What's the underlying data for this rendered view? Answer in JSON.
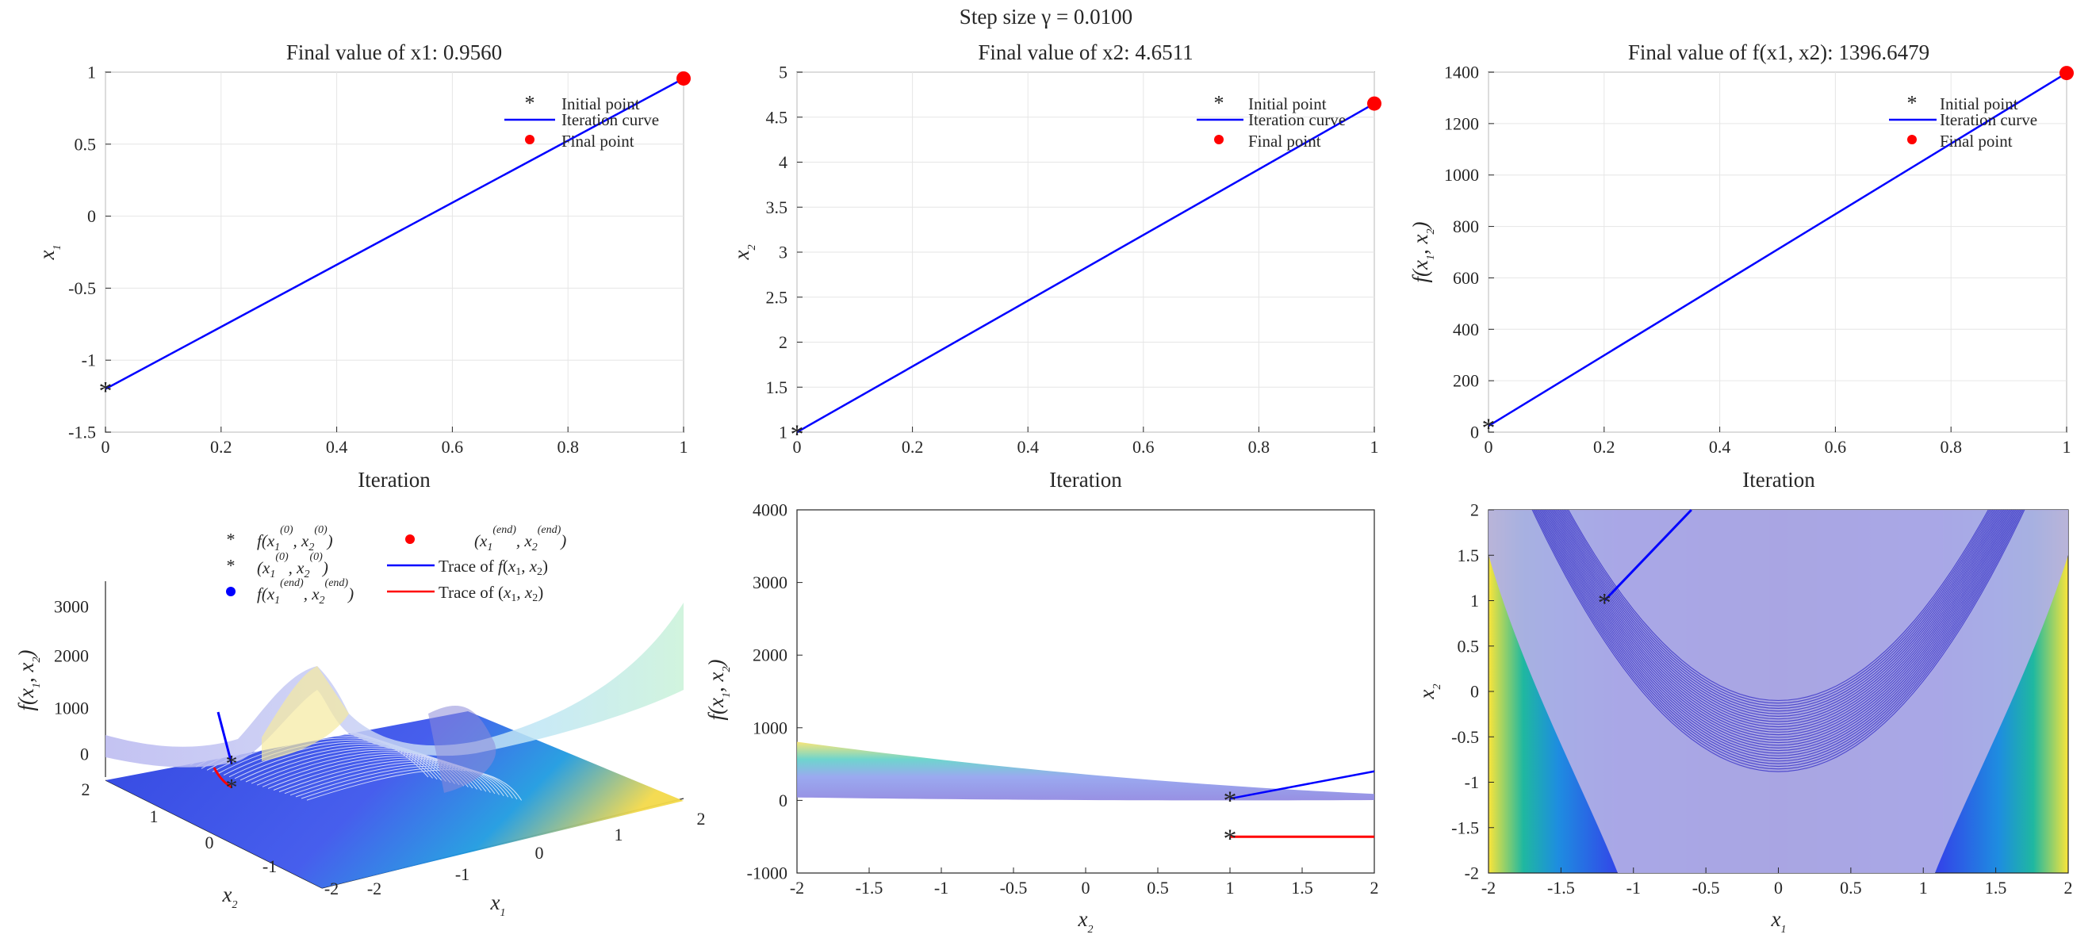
{
  "suptitle": "Step size γ = 0.0100",
  "colors": {
    "blue": "#0000ff",
    "red": "#ff0000",
    "grid": "#e6e6e6",
    "axis": "#262626",
    "surface_tint": "#a6a6e8"
  },
  "legend_top": {
    "initial": "Initial point",
    "curve": "Iteration curve",
    "final": "Final point"
  },
  "legend_3d": {
    "f_initial": "f(x1(0), x2(0))",
    "x_initial": "(x1(0), x2(0))",
    "f_final": "f(x1(end), x2(end))",
    "x_final": "(x1(end), x2(end))",
    "trace_f": "Trace of f(x1, x2)",
    "trace_x": "Trace of (x1, x2)"
  },
  "chart_data": [
    {
      "type": "line",
      "title": "Final value of x1: 0.9560",
      "xlabel": "Iteration",
      "ylabel": "x1",
      "xlim": [
        0,
        1
      ],
      "ylim": [
        -1.5,
        1
      ],
      "xticks": [
        "0",
        "0.2",
        "0.4",
        "0.6",
        "0.8",
        "1"
      ],
      "yticks": [
        "-1.5",
        "-1",
        "-0.5",
        "0",
        "0.5",
        "1"
      ],
      "x": [
        0,
        1
      ],
      "y": [
        -1.2,
        0.956
      ],
      "grid": true,
      "legend": "top-right"
    },
    {
      "type": "line",
      "title": "Final value of x2: 4.6511",
      "xlabel": "Iteration",
      "ylabel": "x2",
      "xlim": [
        0,
        1
      ],
      "ylim": [
        1,
        5
      ],
      "xticks": [
        "0",
        "0.2",
        "0.4",
        "0.6",
        "0.8",
        "1"
      ],
      "yticks": [
        "1",
        "1.5",
        "2",
        "2.5",
        "3",
        "3.5",
        "4",
        "4.5",
        "5"
      ],
      "x": [
        0,
        1
      ],
      "y": [
        1,
        4.6511
      ],
      "grid": true,
      "legend": "top-right"
    },
    {
      "type": "line",
      "title": "Final value of f(x1, x2): 1396.6479",
      "xlabel": "Iteration",
      "ylabel": "f(x1, x2)",
      "xlim": [
        0,
        1
      ],
      "ylim": [
        0,
        1400
      ],
      "xticks": [
        "0",
        "0.2",
        "0.4",
        "0.6",
        "0.8",
        "1"
      ],
      "yticks": [
        "0",
        "200",
        "400",
        "600",
        "800",
        "1000",
        "1200",
        "1400"
      ],
      "x": [
        0,
        1
      ],
      "y": [
        24.2,
        1396.6479
      ],
      "grid": true,
      "legend": "top-right"
    },
    {
      "type": "area",
      "title": "",
      "xlabel": "x1",
      "ylabel": "x2",
      "zlabel": "f(x1, x2)",
      "x1ticks": [
        "-2",
        "-1",
        "0",
        "1",
        "2"
      ],
      "x2ticks": [
        "-2",
        "-1",
        "0",
        "1",
        "2"
      ],
      "zticks": [
        "0",
        "1000",
        "2000",
        "3000"
      ],
      "trace_f": {
        "x1": [
          -1.2,
          0.956
        ],
        "x2": [
          1,
          4.6511
        ],
        "f": [
          24.2,
          1396.6479
        ]
      },
      "trace_x": {
        "x1": [
          -1.2,
          0.956
        ],
        "x2": [
          1,
          4.6511
        ]
      }
    },
    {
      "type": "line",
      "title": "",
      "xlabel": "x2",
      "ylabel": "f(x1, x2)",
      "xlim": [
        -2,
        2
      ],
      "ylim": [
        -1000,
        4000
      ],
      "xticks": [
        "-2",
        "-1.5",
        "-1",
        "-0.5",
        "0",
        "0.5",
        "1",
        "1.5",
        "2"
      ],
      "yticks": [
        "-1000",
        "0",
        "1000",
        "2000",
        "3000",
        "4000"
      ],
      "trace_f": {
        "x": [
          1,
          2
        ],
        "y": [
          24.2,
          400
        ]
      },
      "trace_x": {
        "x": [
          1,
          2
        ],
        "y": [
          -500,
          -500
        ]
      }
    },
    {
      "type": "heatmap",
      "title": "",
      "xlabel": "x1",
      "ylabel": "x2",
      "xlim": [
        -2,
        2
      ],
      "ylim": [
        -2,
        2
      ],
      "xticks": [
        "-2",
        "-1.5",
        "-1",
        "-0.5",
        "0",
        "0.5",
        "1",
        "1.5",
        "2"
      ],
      "yticks": [
        "-2",
        "-1.5",
        "-1",
        "-0.5",
        "0",
        "0.5",
        "1",
        "1.5",
        "2"
      ],
      "trace": {
        "x": [
          -1.2,
          -0.6
        ],
        "y": [
          1,
          2
        ]
      }
    }
  ]
}
